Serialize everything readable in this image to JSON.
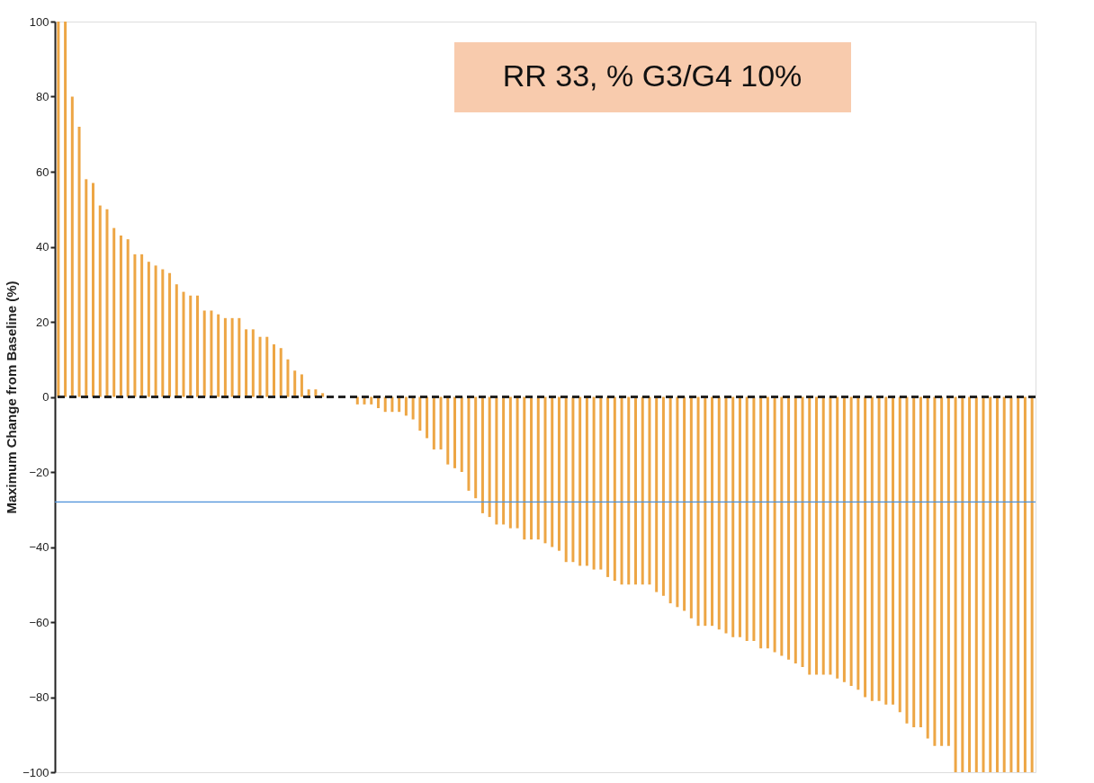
{
  "chart_data": {
    "type": "bar",
    "ylabel": "Maximum Change from Baseline (%)",
    "categories": [
      null,
      null,
      null,
      null,
      null,
      null,
      null,
      null,
      null,
      null,
      null,
      null,
      null,
      null,
      null,
      null,
      null,
      null,
      null,
      null,
      null,
      null,
      null,
      null,
      null,
      null,
      null,
      null,
      null,
      null,
      null,
      null,
      null,
      null,
      null,
      null,
      null,
      null,
      null,
      null,
      null,
      null,
      null,
      null,
      null,
      null,
      null,
      null,
      null,
      null,
      null,
      null,
      null,
      null,
      null,
      null,
      null,
      null,
      null,
      null,
      null,
      null,
      null,
      null,
      null,
      null,
      null,
      null,
      null,
      null,
      null,
      null,
      null,
      null,
      null,
      null,
      null,
      null,
      null,
      null,
      null,
      null,
      null,
      null,
      null,
      null,
      null,
      null,
      null,
      null,
      null,
      null,
      null,
      null,
      null,
      null,
      null,
      null,
      null,
      null,
      null,
      null,
      null,
      null,
      null,
      null,
      null,
      null,
      null,
      null,
      null,
      null,
      null,
      null,
      null,
      null,
      null,
      null,
      null,
      null,
      null,
      null,
      null,
      null,
      null,
      null,
      null,
      null,
      null,
      null,
      null,
      null,
      null,
      null,
      null,
      null,
      null,
      null,
      null,
      null,
      null
    ],
    "values": [
      100,
      100,
      80,
      72,
      58,
      57,
      51,
      50,
      45,
      43,
      42,
      38,
      38,
      36,
      35,
      34,
      33,
      30,
      28,
      27,
      27,
      23,
      23,
      22,
      21,
      21,
      21,
      18,
      18,
      16,
      16,
      14,
      13,
      10,
      7,
      6,
      2,
      2,
      1,
      0,
      0,
      0,
      0,
      -2,
      -2,
      -2,
      -3,
      -4,
      -4,
      -4,
      -5,
      -6,
      -9,
      -11,
      -14,
      -14,
      -18,
      -19,
      -20,
      -25,
      -27,
      -31,
      -32,
      -34,
      -34,
      -35,
      -35,
      -38,
      -38,
      -38,
      -39,
      -40,
      -41,
      -44,
      -44,
      -45,
      -45,
      -46,
      -46,
      -48,
      -49,
      -50,
      -50,
      -50,
      -50,
      -50,
      -52,
      -53,
      -55,
      -56,
      -57,
      -59,
      -61,
      -61,
      -61,
      -62,
      -63,
      -64,
      -64,
      -65,
      -65,
      -67,
      -67,
      -68,
      -69,
      -70,
      -71,
      -72,
      -74,
      -74,
      -74,
      -74,
      -75,
      -76,
      -77,
      -78,
      -80,
      -81,
      -81,
      -82,
      -82,
      -84,
      -87,
      -88,
      -88,
      -91,
      -93,
      -93,
      -93,
      -100,
      -100,
      -100,
      -100,
      -100,
      -100,
      -100,
      -100,
      -100,
      -100,
      -100,
      -100
    ],
    "color": "#eda645",
    "ylim": [
      -100,
      100
    ],
    "yticks": [
      -100,
      -80,
      -60,
      -40,
      -20,
      0,
      20,
      40,
      60,
      80,
      100
    ],
    "grid": false,
    "tick_labels": "y",
    "ref_lines": [
      {
        "axis": "y",
        "value": 0,
        "color": "#222222",
        "line_style": "dashed"
      },
      {
        "axis": "y",
        "value": -28,
        "color": "#4a90d9",
        "line_style": "solid"
      }
    ],
    "annotations": [
      "RR 33, % G3/G4 10%"
    ]
  }
}
